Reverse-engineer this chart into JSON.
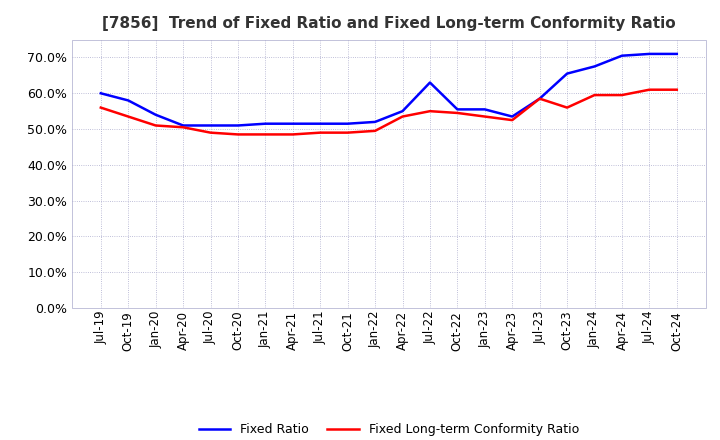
{
  "title": "[7856]  Trend of Fixed Ratio and Fixed Long-term Conformity Ratio",
  "title_fontsize": 11,
  "xlabels": [
    "Jul-19",
    "Oct-19",
    "Jan-20",
    "Apr-20",
    "Jul-20",
    "Oct-20",
    "Jan-21",
    "Apr-21",
    "Jul-21",
    "Oct-21",
    "Jan-22",
    "Apr-22",
    "Jul-22",
    "Oct-22",
    "Jan-23",
    "Apr-23",
    "Jul-23",
    "Oct-23",
    "Jan-24",
    "Apr-24",
    "Jul-24",
    "Oct-24"
  ],
  "fixed_ratio": [
    60.0,
    58.0,
    54.0,
    51.0,
    51.0,
    51.0,
    51.5,
    51.5,
    51.5,
    51.5,
    52.0,
    55.0,
    63.0,
    55.5,
    55.5,
    53.5,
    58.5,
    65.5,
    67.5,
    70.5,
    71.0,
    71.0
  ],
  "fixed_lt_ratio": [
    56.0,
    53.5,
    51.0,
    50.5,
    49.0,
    48.5,
    48.5,
    48.5,
    49.0,
    49.0,
    49.5,
    53.5,
    55.0,
    54.5,
    53.5,
    52.5,
    58.5,
    56.0,
    59.5,
    59.5,
    61.0,
    61.0
  ],
  "fixed_ratio_color": "#0000FF",
  "fixed_lt_ratio_color": "#FF0000",
  "ylim": [
    0,
    75
  ],
  "yticks": [
    0,
    10,
    20,
    30,
    40,
    50,
    60,
    70
  ],
  "background_color": "#ffffff",
  "plot_bg_color": "#ffffff",
  "grid_color": "#aaaacc",
  "legend_labels": [
    "Fixed Ratio",
    "Fixed Long-term Conformity Ratio"
  ]
}
